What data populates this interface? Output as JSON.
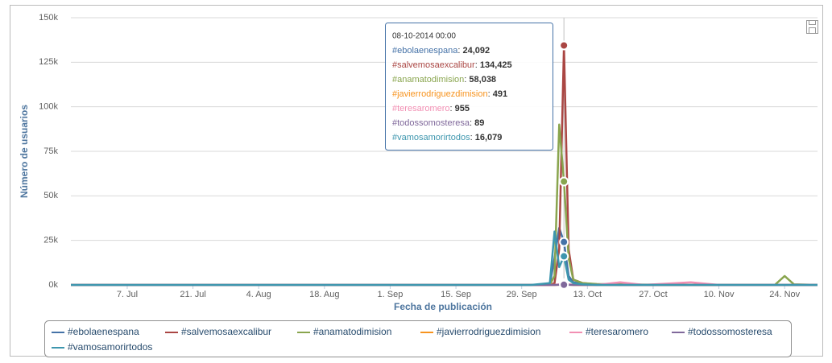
{
  "chart_data": {
    "type": "line",
    "y_label": "Número de usuarios",
    "x_label": "Fecha de publicación",
    "x": [
      "2014-06-25",
      "2014-10-01",
      "2014-10-05",
      "2014-10-06",
      "2014-10-07",
      "2014-10-08",
      "2014-10-09",
      "2014-10-10",
      "2014-10-12",
      "2014-10-15",
      "2014-10-20",
      "2014-10-25",
      "2014-11-04",
      "2014-11-10",
      "2014-11-22",
      "2014-11-24",
      "2014-11-26",
      "2014-12-01"
    ],
    "series": [
      {
        "name": "#ebolaenespana",
        "color": "#4572a7",
        "values": [
          0,
          0,
          500,
          15000,
          32000,
          24092,
          5000,
          1500,
          500,
          200,
          0,
          0,
          0,
          0,
          0,
          0,
          0,
          0
        ]
      },
      {
        "name": "#salvemosaexcalibur",
        "color": "#aa4643",
        "values": [
          0,
          0,
          0,
          1000,
          20000,
          134425,
          20000,
          3000,
          1000,
          300,
          200,
          0,
          0,
          0,
          0,
          0,
          0,
          0
        ]
      },
      {
        "name": "#anamatodimision",
        "color": "#89a54e",
        "values": [
          0,
          0,
          200,
          5000,
          90000,
          58038,
          15000,
          3000,
          1000,
          500,
          300,
          200,
          100,
          100,
          200,
          5000,
          300,
          0
        ]
      },
      {
        "name": "#javierrodriguezdimision",
        "color": "#f7931e",
        "values": [
          0,
          0,
          0,
          0,
          100,
          491,
          200,
          0,
          0,
          0,
          0,
          0,
          0,
          0,
          0,
          0,
          0,
          0
        ]
      },
      {
        "name": "#teresaromero",
        "color": "#f28fb3",
        "values": [
          0,
          0,
          0,
          0,
          300,
          955,
          300,
          100,
          0,
          0,
          1500,
          0,
          1500,
          0,
          0,
          0,
          0,
          0
        ]
      },
      {
        "name": "#todossomosteresa",
        "color": "#80699b",
        "values": [
          0,
          0,
          0,
          0,
          50,
          89,
          30,
          0,
          0,
          0,
          0,
          0,
          0,
          0,
          0,
          0,
          0,
          0
        ]
      },
      {
        "name": "#vamosamorirtodos",
        "color": "#3d96ae",
        "values": [
          0,
          0,
          1000,
          30000,
          10000,
          16079,
          3000,
          1000,
          300,
          0,
          0,
          0,
          0,
          0,
          0,
          0,
          0,
          0
        ]
      }
    ],
    "xlim": [
      "2014-06-25",
      "2014-12-01"
    ],
    "xticks": [
      {
        "value": "2014-07-07",
        "label": "7. Jul"
      },
      {
        "value": "2014-07-21",
        "label": "21. Jul"
      },
      {
        "value": "2014-08-04",
        "label": "4. Aug"
      },
      {
        "value": "2014-08-18",
        "label": "18. Aug"
      },
      {
        "value": "2014-09-01",
        "label": "1. Sep"
      },
      {
        "value": "2014-09-15",
        "label": "15. Sep"
      },
      {
        "value": "2014-09-29",
        "label": "29. Sep"
      },
      {
        "value": "2014-10-13",
        "label": "13. Oct"
      },
      {
        "value": "2014-10-27",
        "label": "27. Oct"
      },
      {
        "value": "2014-11-10",
        "label": "10. Nov"
      },
      {
        "value": "2014-11-24",
        "label": "24. Nov"
      }
    ],
    "ylim": [
      0,
      150000
    ],
    "yticks": [
      {
        "value": 0,
        "label": "0k"
      },
      {
        "value": 25000,
        "label": "25k"
      },
      {
        "value": 50000,
        "label": "50k"
      },
      {
        "value": 75000,
        "label": "75k"
      },
      {
        "value": 100000,
        "label": "100k"
      },
      {
        "value": 125000,
        "label": "125k"
      },
      {
        "value": 150000,
        "label": "150k"
      }
    ],
    "grid": true,
    "legend": "bottom",
    "tooltip": {
      "index": 5,
      "date": "08-10-2014 00:00",
      "separator": ": ",
      "labels": [
        "24,092",
        "134,425",
        "58,038",
        "491",
        "955",
        "89",
        "16,079"
      ]
    }
  }
}
